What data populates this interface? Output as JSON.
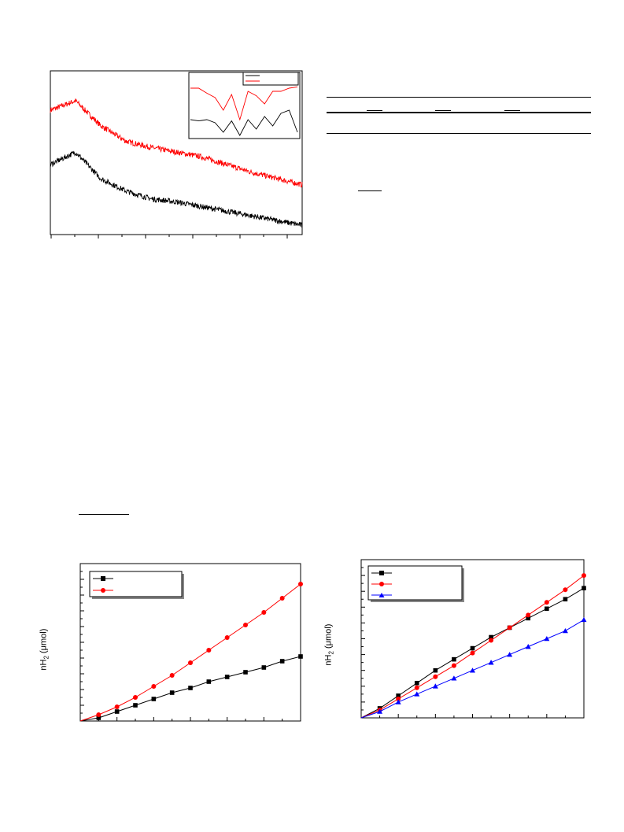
{
  "chart_data": [
    {
      "type": "line",
      "description_hidden": true,
      "x": [
        0,
        1,
        2,
        3,
        4,
        5,
        6,
        7,
        8,
        9,
        10
      ],
      "series": [
        {
          "color": "#ff0000",
          "values": [
            0.8,
            0.86,
            0.7,
            0.6,
            0.56,
            0.53,
            0.5,
            0.45,
            0.4,
            0.36,
            0.32
          ]
        },
        {
          "color": "#000000",
          "values": [
            0.45,
            0.53,
            0.36,
            0.28,
            0.23,
            0.21,
            0.18,
            0.15,
            0.12,
            0.09,
            0.06
          ]
        }
      ],
      "inset": {
        "type": "line",
        "series": [
          {
            "color": "#000000",
            "values": [
              0.3,
              0.28,
              0.3,
              0.25,
              0.1,
              0.28,
              0.05,
              0.3,
              0.15,
              0.35,
              0.2,
              0.4,
              0.45,
              0.1
            ]
          },
          {
            "color": "#ff0000",
            "values": [
              0.8,
              0.8,
              0.72,
              0.65,
              0.45,
              0.7,
              0.3,
              0.75,
              0.68,
              0.55,
              0.75,
              0.75,
              0.8,
              0.82
            ]
          }
        ]
      }
    },
    {
      "type": "line",
      "x": [
        0,
        1,
        2,
        3,
        4,
        5,
        6,
        7,
        8,
        9,
        10,
        11,
        12
      ],
      "ylabel": "nH",
      "ylabel_sub": "2",
      "ylabel_unit": " (μmol)",
      "series": [
        {
          "color": "#000000",
          "marker": "square",
          "values": [
            0,
            0.02,
            0.06,
            0.1,
            0.14,
            0.18,
            0.21,
            0.25,
            0.28,
            0.31,
            0.34,
            0.38,
            0.41
          ]
        },
        {
          "color": "#ff0000",
          "marker": "circle",
          "values": [
            0,
            0.04,
            0.09,
            0.15,
            0.22,
            0.29,
            0.37,
            0.45,
            0.53,
            0.61,
            0.69,
            0.78,
            0.87
          ]
        }
      ]
    },
    {
      "type": "line",
      "x": [
        0,
        1,
        2,
        3,
        4,
        5,
        6,
        7,
        8,
        9,
        10,
        11,
        12
      ],
      "ylabel": "nH",
      "ylabel_sub": "2",
      "ylabel_unit": " (μmol)",
      "series": [
        {
          "color": "#000000",
          "marker": "square",
          "values": [
            0,
            0.06,
            0.14,
            0.22,
            0.3,
            0.37,
            0.44,
            0.51,
            0.57,
            0.63,
            0.69,
            0.75,
            0.82
          ]
        },
        {
          "color": "#ff0000",
          "marker": "circle",
          "values": [
            0,
            0.05,
            0.12,
            0.19,
            0.26,
            0.33,
            0.41,
            0.49,
            0.57,
            0.65,
            0.73,
            0.81,
            0.9
          ]
        },
        {
          "color": "#0000ff",
          "marker": "triangle",
          "values": [
            0,
            0.04,
            0.1,
            0.15,
            0.2,
            0.25,
            0.3,
            0.35,
            0.4,
            0.45,
            0.5,
            0.55,
            0.62
          ]
        }
      ]
    }
  ]
}
